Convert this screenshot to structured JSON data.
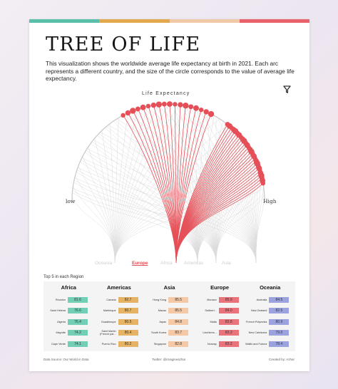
{
  "colors": {
    "top_bar": [
      "#58bfa8",
      "#e3a84c",
      "#f2c9a6",
      "#e9616a"
    ],
    "highlight": "#e55058",
    "background_lines": "#dcdcdc",
    "africa": "#72cfb6",
    "americas": "#e5b363",
    "asia": "#f5c9a5",
    "europe": "#ea737b",
    "oceania": "#9aa3df"
  },
  "header": {
    "title": "TREE OF LIFE",
    "description": "This visualization shows the worldwide average life expectancy at birth in 2021. Each arc represents a different country, and the size of the circle corresponds to the value of average life expectancy."
  },
  "filter_icon": "funnel-icon",
  "chart_labels": {
    "arc_title": "Life Expectancy",
    "low": "low",
    "high": "High",
    "regions": [
      "Oceania",
      "Europe",
      "Africa",
      "Americas",
      "Asia"
    ],
    "selected_region": "Europe"
  },
  "chart_data": {
    "type": "arc-tree",
    "title": "Life Expectancy",
    "scale": [
      "low",
      "High"
    ],
    "regions": [
      "Oceania",
      "Europe",
      "Africa",
      "Americas",
      "Asia"
    ],
    "highlighted": "Europe"
  },
  "top5": {
    "title": "Top 5 in each Region",
    "regions": [
      {
        "name": "Africa",
        "color": "#72cfb6",
        "rows": [
          {
            "country": "Reunion",
            "value": "81.6"
          },
          {
            "country": "Saint Helena",
            "value": "76.6"
          },
          {
            "country": "Algeria",
            "value": "76.4"
          },
          {
            "country": "Mayotte",
            "value": "74.2"
          },
          {
            "country": "Cape Verde",
            "value": "74.1"
          }
        ]
      },
      {
        "name": "Americas",
        "color": "#e5b363",
        "rows": [
          {
            "country": "Canada",
            "value": "82.7"
          },
          {
            "country": "Martinique",
            "value": "80.7"
          },
          {
            "country": "Guadeloupe",
            "value": "80.5"
          },
          {
            "country": "Saint Martin (French par...",
            "value": "80.4"
          },
          {
            "country": "Puerto Rico",
            "value": "80.2"
          }
        ]
      },
      {
        "name": "Asia",
        "color": "#f5c9a5",
        "rows": [
          {
            "country": "Hong Kong",
            "value": "85.5"
          },
          {
            "country": "Macao",
            "value": "85.5"
          },
          {
            "country": "Japan",
            "value": "84.8"
          },
          {
            "country": "South Korea",
            "value": "83.7"
          },
          {
            "country": "Singapore",
            "value": "82.8"
          }
        ]
      },
      {
        "name": "Europe",
        "color": "#ea737b",
        "rows": [
          {
            "country": "Monaco",
            "value": "85.9"
          },
          {
            "country": "Switzerl...",
            "value": "84.0"
          },
          {
            "country": "Malta",
            "value": "83.8"
          },
          {
            "country": "Liechtens...",
            "value": "83.3"
          },
          {
            "country": "Norway",
            "value": "83.2"
          }
        ]
      },
      {
        "name": "Oceania",
        "color": "#9aa3df",
        "rows": [
          {
            "country": "Australia",
            "value": "84.5"
          },
          {
            "country": "New Zealand",
            "value": "82.5"
          },
          {
            "country": "French Polynesia",
            "value": "80.9"
          },
          {
            "country": "New Caledonia",
            "value": "79.0"
          },
          {
            "country": "Wallis and Futuna",
            "value": "78.4"
          }
        ]
      }
    ]
  },
  "footer": {
    "source": "Data Source: Our World in Data",
    "twitter": "Twitter: @imagineazhar",
    "created": "Created by: Azhar"
  }
}
